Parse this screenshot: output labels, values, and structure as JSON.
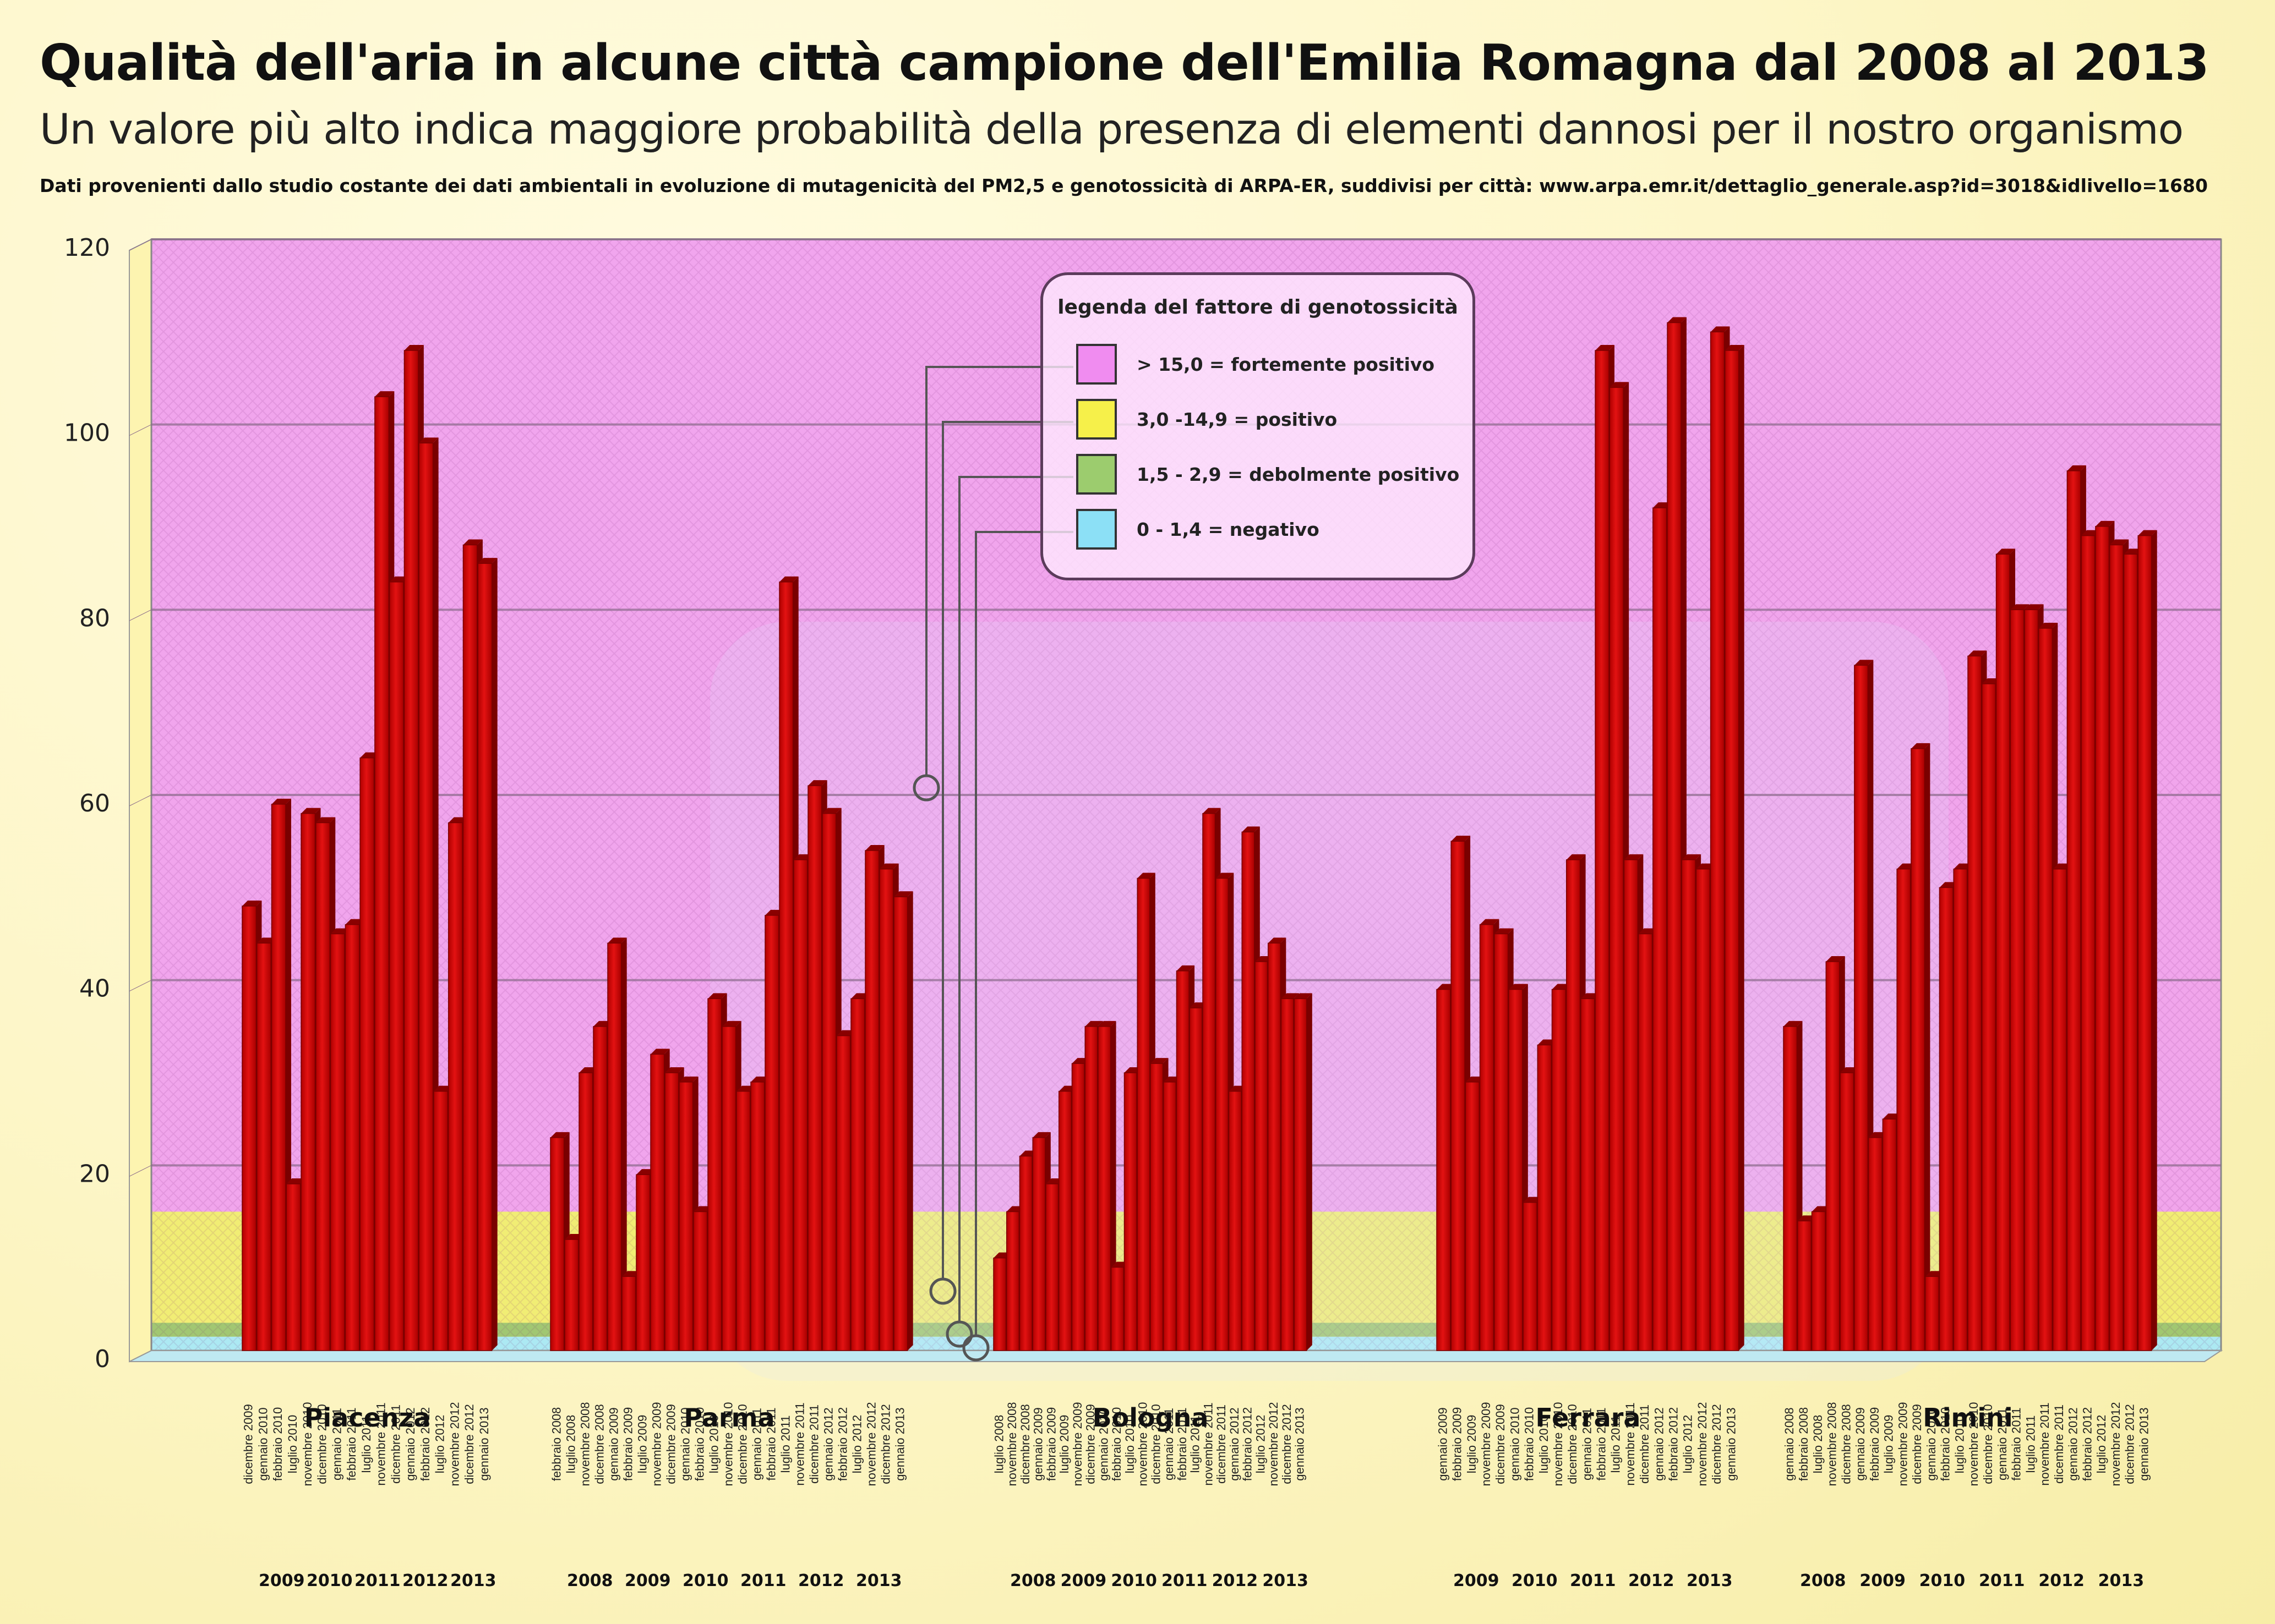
{
  "header": {
    "title": "Qualità  dell'aria in alcune città  campione dell'Emilia Romagna dal 2008 al 2013",
    "subtitle": "Un valore più alto indica maggiore probabilità della presenza di elementi dannosi per il nostro organismo",
    "source": "Dati provenienti dallo studio costante dei dati ambientali in evoluzione di mutagenicità  del PM2,5 e genotossicità  di ARPA-ER, suddivisi per città: www.arpa.emr.it/dettaglio_generale.asp?id=3018&idlivello=1680"
  },
  "legend": {
    "title": "legenda del fattore di genotossicità",
    "items": [
      {
        "label": "> 15,0 = fortemente positivo",
        "color": "#f08cf0"
      },
      {
        "label": "3,0 -14,9 = positivo",
        "color": "#f6f04a"
      },
      {
        "label": "1,5 - 2,9 = debolmente positivo",
        "color": "#9ccc6e"
      },
      {
        "label": "0 - 1,4 = negativo",
        "color": "#8ce0f6"
      }
    ]
  },
  "colors": {
    "bar": "#d20c0c",
    "bar_dark": "#8a0000",
    "band_strong": "#f0a0ee",
    "band_positive": "#f0ec70",
    "band_weak": "#9cc46e",
    "band_negative": "#a8e8f6"
  },
  "chart_data": {
    "type": "bar",
    "ylim": [
      0,
      120
    ],
    "yticks": [
      0,
      20,
      40,
      60,
      80,
      100,
      120
    ],
    "bands": [
      {
        "from": 0,
        "to": 1.4
      },
      {
        "from": 1.5,
        "to": 2.9
      },
      {
        "from": 3.0,
        "to": 14.9
      },
      {
        "from": 15.0,
        "to": 120
      }
    ],
    "cities": [
      {
        "name": "Piacenza",
        "labels": [
          "dicembre 2009",
          "gennaio 2010",
          "febbraio 2010",
          "luglio 2010",
          "novembre 2010",
          "dicembre 2010",
          "gennaio 2011",
          "febbraio 2011",
          "luglio 2011",
          "novembre 2011",
          "dicembre 2011",
          "gennaio 2012",
          "febbraio 2012",
          "luglio 2012",
          "novembre 2012",
          "dicembre 2012",
          "gennaio 2013"
        ],
        "values": [
          48,
          44,
          59,
          18,
          58,
          57,
          45,
          46,
          64,
          103,
          83,
          108,
          98,
          28,
          57,
          87,
          85
        ],
        "years": [
          "2009",
          "2010",
          "2011",
          "2012",
          "2013"
        ]
      },
      {
        "name": "Parma",
        "labels": [
          "febbraio 2008",
          "luglio 2008",
          "novembre 2008",
          "dicembre 2008",
          "gennaio 2009",
          "febbraio 2009",
          "luglio 2009",
          "novembre 2009",
          "dicembre 2009",
          "gennaio 2010",
          "febbraio 2010",
          "luglio 2010",
          "novembre 2010",
          "dicembre 2010",
          "gennaio 2011",
          "febbraio 2011",
          "luglio 2011",
          "novembre 2011",
          "dicembre 2011",
          "gennaio 2012",
          "febbraio 2012",
          "luglio 2012",
          "novembre 2012",
          "dicembre 2012",
          "gennaio 2013"
        ],
        "values": [
          23,
          12,
          30,
          35,
          44,
          8,
          19,
          32,
          30,
          29,
          15,
          38,
          35,
          28,
          29,
          47,
          83,
          53,
          61,
          58,
          34,
          38,
          54,
          52,
          49
        ],
        "years": [
          "2008",
          "2009",
          "2010",
          "2011",
          "2012",
          "2013"
        ]
      },
      {
        "name": "Bologna",
        "labels": [
          "luglio 2008",
          "novembre 2008",
          "dicembre 2008",
          "gennaio 2009",
          "febbraio 2009",
          "luglio 2009",
          "novembre 2009",
          "dicembre 2009",
          "gennaio 2010",
          "febbraio 2010",
          "luglio 2010",
          "novembre 2010",
          "dicembre 2010",
          "gennaio 2011",
          "febbraio 2011",
          "luglio 2011",
          "novembre 2011",
          "dicembre 2011",
          "gennaio 2012",
          "febbraio 2012",
          "luglio 2012",
          "novembre 2012",
          "dicembre 2012",
          "gennaio 2013"
        ],
        "values": [
          10,
          15,
          21,
          23,
          18,
          28,
          31,
          35,
          35,
          9,
          30,
          51,
          31,
          29,
          41,
          37,
          58,
          51,
          28,
          56,
          42,
          44,
          38,
          38
        ],
        "years": [
          "2008",
          "2009",
          "2010",
          "2011",
          "2012",
          "2013"
        ]
      },
      {
        "name": "Ferrara",
        "labels": [
          "gennaio 2009",
          "febbraio 2009",
          "luglio 2009",
          "novembre 2009",
          "dicembre 2009",
          "gennaio 2010",
          "febbraio 2010",
          "luglio 2010",
          "novembre 2010",
          "dicembre 2010",
          "gennaio 2011",
          "febbraio 2011",
          "luglio 2011",
          "novembre 2011",
          "dicembre 2011",
          "gennaio 2012",
          "febbraio 2012",
          "luglio 2012",
          "novembre 2012",
          "dicembre 2012",
          "gennaio 2013"
        ],
        "values": [
          39,
          55,
          29,
          46,
          45,
          39,
          16,
          33,
          39,
          53,
          38,
          108,
          104,
          53,
          45,
          91,
          111,
          53,
          52,
          110,
          108
        ],
        "years": [
          "2009",
          "2010",
          "2011",
          "2012",
          "2013"
        ]
      },
      {
        "name": "Rimini",
        "labels": [
          "gennaio 2008",
          "febbraio 2008",
          "luglio 2008",
          "novembre 2008",
          "dicembre 2008",
          "gennaio 2009",
          "febbraio 2009",
          "luglio 2009",
          "novembre 2009",
          "dicembre 2009",
          "gennaio 2010",
          "febbraio 2010",
          "luglio 2010",
          "novembre 2010",
          "dicembre 2010",
          "gennaio 2011",
          "febbraio 2011",
          "luglio 2011",
          "novembre 2011",
          "dicembre 2011",
          "gennaio 2012",
          "febbraio 2012",
          "luglio 2012",
          "novembre 2012",
          "dicembre 2012",
          "gennaio 2013"
        ],
        "values": [
          35,
          14,
          15,
          42,
          30,
          74,
          23,
          25,
          52,
          65,
          8,
          50,
          52,
          75,
          72,
          86,
          80,
          80,
          78,
          52,
          95,
          88,
          89,
          87,
          86,
          88
        ],
        "years": [
          "2008",
          "2009",
          "2010",
          "2011",
          "2012",
          "2013"
        ]
      }
    ]
  }
}
